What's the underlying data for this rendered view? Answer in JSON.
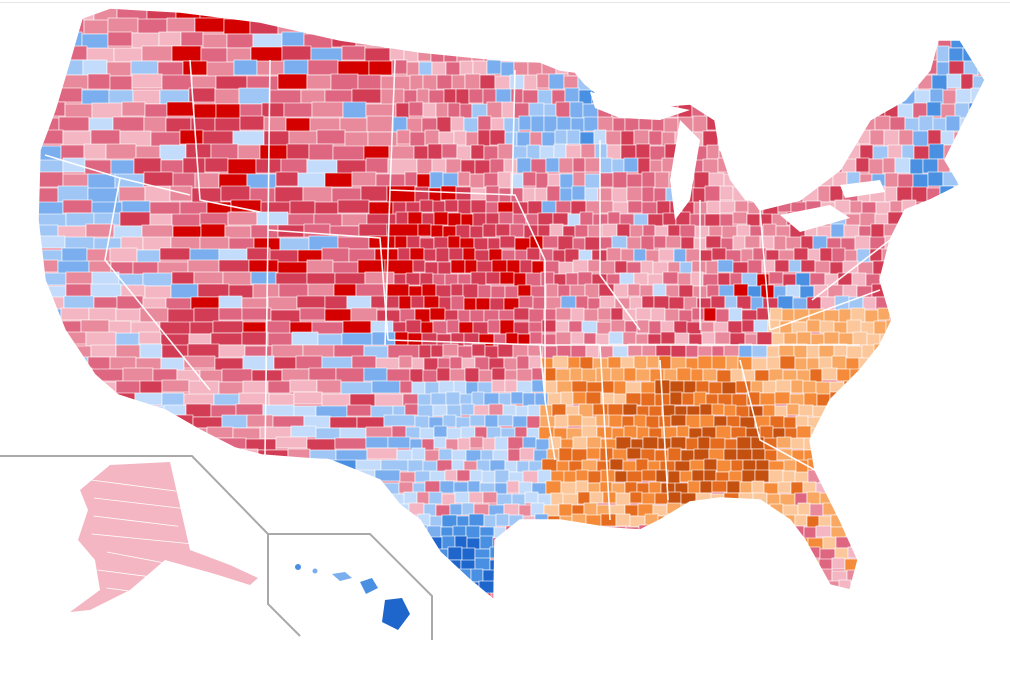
{
  "map": {
    "type": "county choropleth",
    "regions": [
      "contiguous-us",
      "alaska-inset",
      "hawaii-inset"
    ],
    "colors": {
      "background": "#ffffff",
      "county_border": "#ffffff",
      "inset_frame": "#a9a9a9",
      "red_scale": [
        "#f4b6c2",
        "#e98a9c",
        "#df6680",
        "#d23c54",
        "#d40000"
      ],
      "blue_scale": [
        "#c3dcfb",
        "#9fc6f5",
        "#7aaeee",
        "#4a90e2",
        "#1f66cc"
      ],
      "orange_scale": [
        "#fcc79a",
        "#f9a864",
        "#f58a38",
        "#e56b1f",
        "#c4500f"
      ]
    }
  }
}
